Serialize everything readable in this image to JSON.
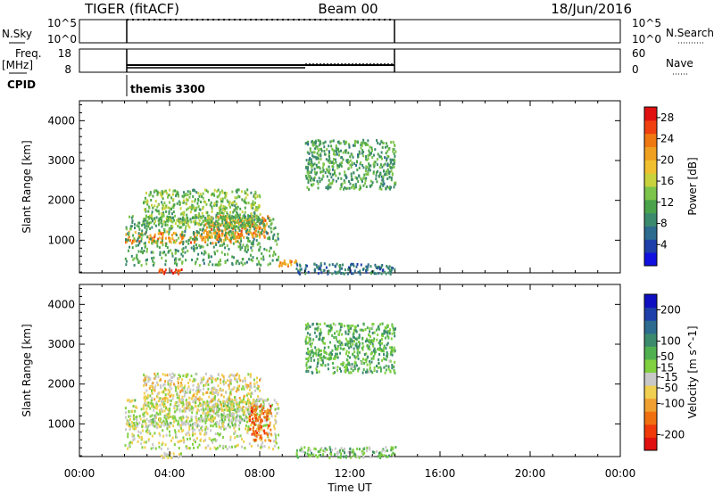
{
  "header": {
    "radar": "TIGER (fitACF)",
    "beam": "Beam 00",
    "date": "18/Jun/2016"
  },
  "status_panels": {
    "nsky_label": "N.Sky",
    "nsky_ticks": [
      "10^5",
      "10^0"
    ],
    "nsearch_label": "N.Search",
    "freq_label": "Freq.",
    "freq_unit": "[MHz]",
    "freq_ticks": [
      "18",
      "8"
    ],
    "nave_ticks": [
      "60",
      "0"
    ],
    "nave_label": "Nave",
    "cpid_label": "CPID",
    "cpid_value": "themis 3300"
  },
  "colors": {
    "power": [
      "#1010e0",
      "#1e3fa8",
      "#2d6b8f",
      "#3c8a6e",
      "#4aa34a",
      "#7cc44a",
      "#c8d23c",
      "#f0c030",
      "#f0a020",
      "#f07810",
      "#f04010",
      "#e01010"
    ],
    "velocity": [
      "#e01010",
      "#f03a0a",
      "#f07010",
      "#f0a030",
      "#f0d050",
      "#c8c8c8",
      "#80d040",
      "#50b050",
      "#3c8a6e",
      "#2d6b8f",
      "#1e3fa8",
      "#1010c0"
    ]
  },
  "chart_data": [
    {
      "type": "heatmap",
      "title": "Power",
      "xlabel": "Time UT",
      "ylabel": "Slant Range [km]",
      "xlim": [
        "00:00",
        "24:00"
      ],
      "ylim": [
        180,
        4500
      ],
      "x_ticks": [
        "00:00",
        "04:00",
        "08:00",
        "12:00",
        "16:00",
        "20:00",
        "00:00"
      ],
      "y_ticks": [
        1000,
        2000,
        3000,
        4000
      ],
      "colorbar_label": "Power [dB]",
      "colorbar_ticks": [
        4,
        8,
        12,
        16,
        20,
        24,
        28
      ],
      "colorbar_range": [
        0,
        30
      ],
      "regions": [
        {
          "t0": 2.0,
          "t1": 7.2,
          "r0": 950,
          "r1": 1250,
          "value": 22
        },
        {
          "t0": 5.5,
          "t1": 8.4,
          "r0": 1100,
          "r1": 1650,
          "value": 22
        },
        {
          "t0": 2.0,
          "t1": 8.8,
          "r0": 400,
          "r1": 1650,
          "value": 11
        },
        {
          "t0": 2.8,
          "t1": 8.0,
          "r0": 1350,
          "r1": 2300,
          "value": 13
        },
        {
          "t0": 3.5,
          "t1": 4.5,
          "r0": 180,
          "r1": 300,
          "value": 26
        },
        {
          "t0": 8.8,
          "t1": 9.6,
          "r0": 380,
          "r1": 520,
          "value": 22
        },
        {
          "t0": 9.6,
          "t1": 14.0,
          "r0": 180,
          "r1": 450,
          "value": 7
        },
        {
          "t0": 10.0,
          "t1": 14.0,
          "r0": 2300,
          "r1": 3550,
          "value": 11
        }
      ]
    },
    {
      "type": "heatmap",
      "title": "Velocity",
      "xlabel": "Time UT",
      "ylabel": "Slant Range [km]",
      "xlim": [
        "00:00",
        "24:00"
      ],
      "ylim": [
        180,
        4500
      ],
      "x_ticks": [
        "00:00",
        "04:00",
        "08:00",
        "12:00",
        "16:00",
        "20:00",
        "00:00"
      ],
      "y_ticks": [
        1000,
        2000,
        3000,
        4000
      ],
      "colorbar_label": "Velocity [m s^-1]",
      "colorbar_ticks": [
        200,
        100,
        50,
        15,
        -15,
        -50,
        -100,
        -200
      ],
      "colorbar_range": [
        -250,
        250
      ],
      "regions": [
        {
          "t0": 2.0,
          "t1": 7.2,
          "r0": 950,
          "r1": 1250,
          "value": 0
        },
        {
          "t0": 5.5,
          "t1": 8.4,
          "r0": 1100,
          "r1": 1650,
          "value": 0
        },
        {
          "t0": 2.0,
          "t1": 8.8,
          "r0": 400,
          "r1": 1650,
          "value": -20
        },
        {
          "t0": 2.8,
          "t1": 8.0,
          "r0": 1350,
          "r1": 2300,
          "value": -40
        },
        {
          "t0": 7.5,
          "t1": 8.5,
          "r0": 600,
          "r1": 1500,
          "value": -150
        },
        {
          "t0": 3.5,
          "t1": 4.5,
          "r0": 180,
          "r1": 300,
          "value": -40
        },
        {
          "t0": 9.6,
          "t1": 14.0,
          "r0": 180,
          "r1": 450,
          "value": 30
        },
        {
          "t0": 10.0,
          "t1": 14.0,
          "r0": 2300,
          "r1": 3550,
          "value": 60
        }
      ]
    }
  ],
  "operating_time": {
    "start": "02:00",
    "end": "14:00"
  }
}
